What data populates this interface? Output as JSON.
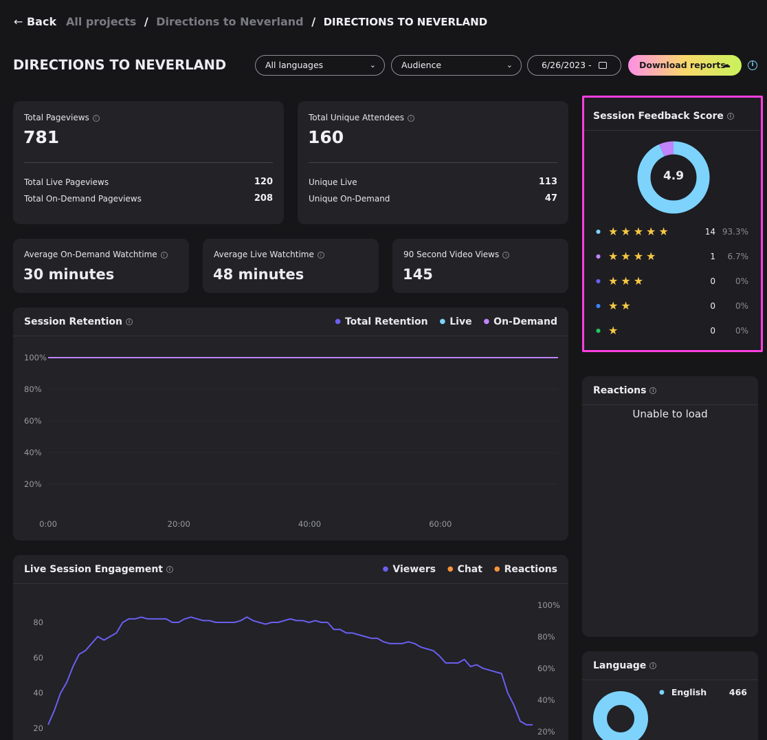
{
  "nav": {
    "back_label": "Back",
    "breadcrumb": [
      "All projects",
      "Directions to Neverland",
      "DIRECTIONS TO NEVERLAND"
    ]
  },
  "header": {
    "title": "DIRECTIONS TO NEVERLAND",
    "language_select": "All languages",
    "audience_select": "Audience",
    "date_range": "6/26/2023 -",
    "download_label": "Download reports"
  },
  "colors": {
    "accent_pink": "#ff5ce0",
    "live_blue": "#7dd3fc",
    "ondemand_purple": "#c084fc",
    "total_indigo": "#6b5ff0",
    "chat_orange": "#fb923c"
  },
  "stats": {
    "pageviews": {
      "label": "Total Pageviews",
      "value": "781",
      "rows": [
        {
          "label": "Total Live Pageviews",
          "value": "120"
        },
        {
          "label": "Total On-Demand Pageviews",
          "value": "208"
        }
      ]
    },
    "attendees": {
      "label": "Total Unique Attendees",
      "value": "160",
      "rows": [
        {
          "label": "Unique Live",
          "value": "113"
        },
        {
          "label": "Unique On-Demand",
          "value": "47"
        }
      ]
    },
    "ondemand_watch": {
      "label": "Average On-Demand Watchtime",
      "value": "30 minutes"
    },
    "live_watch": {
      "label": "Average Live Watchtime",
      "value": "48 minutes"
    },
    "video_views": {
      "label": "90 Second Video Views",
      "value": "145"
    }
  },
  "retention": {
    "title": "Session Retention",
    "legend": [
      "Total Retention",
      "Live",
      "On-Demand"
    ]
  },
  "engagement": {
    "title": "Live Session Engagement",
    "legend": [
      "Viewers",
      "Chat",
      "Reactions"
    ]
  },
  "feedback": {
    "title": "Session Feedback Score",
    "score": "4.9",
    "rows": [
      {
        "stars": "★★★★★",
        "count": "14",
        "pct": "93.3%",
        "color": "#7dd3fc"
      },
      {
        "stars": "★★★★",
        "count": "1",
        "pct": "6.7%",
        "color": "#c084fc"
      },
      {
        "stars": "★★★",
        "count": "0",
        "pct": "0%",
        "color": "#6b5ff0"
      },
      {
        "stars": "★★",
        "count": "0",
        "pct": "0%",
        "color": "#3b82f6"
      },
      {
        "stars": "★",
        "count": "0",
        "pct": "0%",
        "color": "#22c55e"
      }
    ],
    "donut_fractions": [
      0.933,
      0.067
    ]
  },
  "reactions": {
    "title": "Reactions",
    "message": "Unable to load"
  },
  "language": {
    "title": "Language",
    "items": [
      {
        "name": "English",
        "count": "466"
      }
    ]
  },
  "chart_data": [
    {
      "type": "line",
      "title": "Session Retention",
      "x_ticks": [
        "0:00",
        "20:00",
        "40:00",
        "60:00"
      ],
      "y_ticks": [
        "100%",
        "80%",
        "60%",
        "40%",
        "20%"
      ],
      "ylim": [
        0,
        100
      ],
      "xlim": [
        0,
        78
      ],
      "series": [
        {
          "name": "On-Demand",
          "x": [
            0,
            78
          ],
          "y": [
            100,
            100
          ]
        }
      ]
    },
    {
      "type": "line",
      "title": "Live Session Engagement",
      "y_ticks": [
        "80",
        "60",
        "40",
        "20"
      ],
      "y2_ticks": [
        "100%",
        "80%",
        "60%",
        "40%",
        "20%"
      ],
      "ylim": [
        15,
        90
      ],
      "series": [
        {
          "name": "Viewers",
          "values": [
            22,
            30,
            40,
            46,
            55,
            62,
            64,
            68,
            72,
            70,
            72,
            74,
            80,
            82,
            82,
            83,
            82,
            82,
            82,
            82,
            80,
            80,
            82,
            83,
            82,
            81,
            81,
            80,
            80,
            80,
            80,
            81,
            83,
            81,
            80,
            79,
            80,
            80,
            81,
            82,
            81,
            81,
            80,
            81,
            80,
            80,
            76,
            76,
            74,
            74,
            73,
            72,
            71,
            71,
            69,
            68,
            68,
            68,
            69,
            68,
            66,
            65,
            64,
            61,
            57,
            57,
            57,
            59,
            55,
            56,
            54,
            53,
            52,
            51,
            40,
            33,
            24,
            22,
            22
          ]
        }
      ]
    }
  ]
}
